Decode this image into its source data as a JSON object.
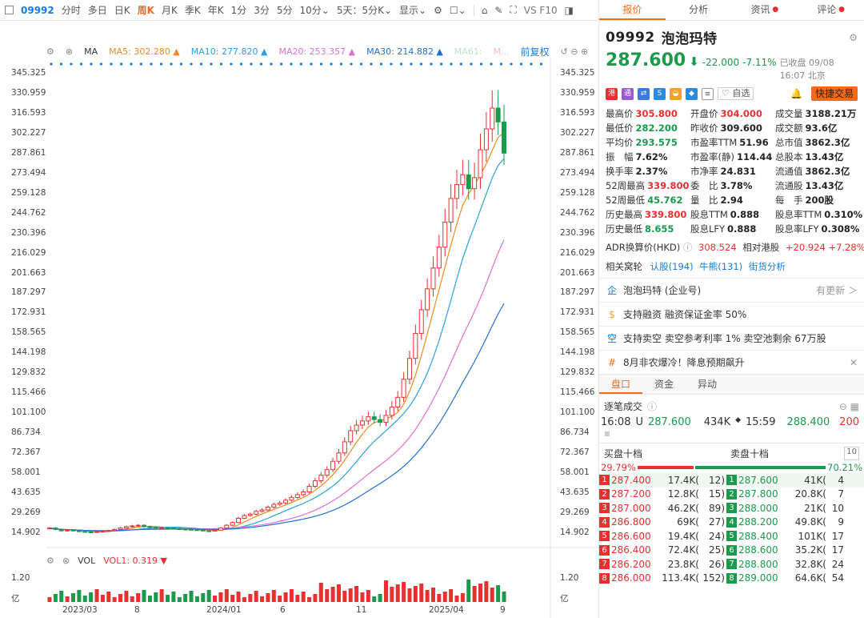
{
  "toolbar": {
    "code": "09992",
    "items": [
      "分时",
      "多日",
      "日K",
      "周K",
      "月K",
      "季K",
      "年K",
      "1分",
      "3分",
      "5分",
      "10分⌄",
      "5天：5分K⌄",
      "显示⌄"
    ],
    "active": "周K",
    "right": "VS F10"
  },
  "ma": {
    "label": "MA",
    "ma5": "MA5:  302.280 ▲",
    "ma10": "MA10:  277.820 ▲",
    "ma20": "MA20:  253.357 ▲",
    "ma30": "MA30:  214.882 ▲",
    "ma61": "MA61:",
    "mam": "M...",
    "fuquan": "前复权"
  },
  "vol": {
    "label": "VOL",
    "vol1": "VOL1:  0.319 ▼",
    "top": "1.20",
    "unit": "亿"
  },
  "yticks": [
    "345.325",
    "330.959",
    "316.593",
    "302.227",
    "287.861",
    "273.494",
    "259.128",
    "244.762",
    "230.396",
    "216.029",
    "201.663",
    "187.297",
    "172.931",
    "158.565",
    "144.198",
    "129.832",
    "115.466",
    "101.100",
    "86.734",
    "72.367",
    "58.001",
    "43.635",
    "29.269",
    "14.902"
  ],
  "xlabels": [
    "2023/03",
    "8",
    "2024/01",
    "6",
    "11",
    "2025/04",
    "9"
  ],
  "chart_data": {
    "type": "candlestick",
    "y_range": [
      14.902,
      345.325
    ],
    "close": [
      18,
      17,
      16,
      16.5,
      16,
      15.5,
      15.2,
      15,
      15.4,
      15.8,
      16.2,
      17,
      18,
      19,
      19.5,
      20,
      19,
      18.5,
      18,
      18.2,
      18,
      17.5,
      17.2,
      17,
      16.8,
      16.5,
      16,
      15.8,
      16.5,
      18,
      20,
      22,
      25,
      27,
      28,
      30,
      31,
      33,
      35,
      36,
      38,
      40,
      42,
      44,
      48,
      52,
      56,
      60,
      66,
      72,
      80,
      88,
      92,
      95,
      98,
      96,
      94,
      99,
      105,
      112,
      125,
      140,
      158,
      175,
      190,
      205,
      220,
      238,
      255,
      265,
      272,
      262,
      270,
      290,
      305,
      320,
      310,
      287.6
    ]
  },
  "panel": {
    "tabs": [
      "报价",
      "分析",
      "资讯",
      "评论"
    ],
    "code": "09992",
    "name": "泡泡玛特",
    "price": "287.600",
    "arrow": "⬇",
    "chg": "-22.000",
    "pct": "-7.11%",
    "ts": "已收盘 09/08 16:07 北京",
    "zixuan": "自选",
    "quick": "快捷交易",
    "stats": [
      [
        "最高价",
        "305.800",
        "r"
      ],
      [
        "开盘价",
        "304.000",
        "r"
      ],
      [
        "成交量",
        "3188.21万",
        ""
      ],
      [
        "最低价",
        "282.200",
        "g"
      ],
      [
        "昨收价",
        "309.600",
        ""
      ],
      [
        "成交额",
        "93.6亿",
        ""
      ],
      [
        "平均价",
        "293.575",
        "g"
      ],
      [
        "市盈率TTM",
        "51.96",
        ""
      ],
      [
        "总市值",
        "3862.3亿",
        ""
      ],
      [
        "振　幅",
        "7.62%",
        ""
      ],
      [
        "市盈率(静)",
        "114.44",
        ""
      ],
      [
        "总股本",
        "13.43亿",
        ""
      ],
      [
        "换手率",
        "2.37%",
        ""
      ],
      [
        "市净率",
        "24.831",
        ""
      ],
      [
        "流通值",
        "3862.3亿",
        ""
      ],
      [
        "52周最高",
        "339.800",
        "r"
      ],
      [
        "委　比",
        "3.78%",
        ""
      ],
      [
        "流通股",
        "13.43亿",
        ""
      ],
      [
        "52周最低",
        "45.762",
        "g"
      ],
      [
        "量　比",
        "2.94",
        ""
      ],
      [
        "每　手",
        "200股",
        ""
      ],
      [
        "历史最高",
        "339.800",
        "r"
      ],
      [
        "股息TTM",
        "0.888",
        ""
      ],
      [
        "股息率TTM",
        "0.310%",
        ""
      ],
      [
        "历史最低",
        "8.655",
        "g"
      ],
      [
        "股息LFY",
        "0.888",
        ""
      ],
      [
        "股息率LFY",
        "0.308%",
        ""
      ]
    ],
    "adr_label": "ADR换算价(HKD)",
    "adr": "308.524",
    "adr_rel": "相对港股",
    "adr_chg": "+20.924",
    "adr_pct": "+7.28%",
    "warrants_label": "相关窝轮",
    "warrants": [
      "认股(194)",
      "牛熊(131)",
      "街货分析"
    ],
    "news": [
      {
        "icon": "企",
        "text": "泡泡玛特 (企业号)",
        "right": "有更新 ＞"
      },
      {
        "icon": "$",
        "text": "支持融资  融资保证金率 50%",
        "right": ""
      },
      {
        "icon": "空",
        "text": "支持卖空  卖空参考利率 1%  卖空池剩余 67万股",
        "right": ""
      },
      {
        "icon": "#",
        "text": "8月非农爆冷！降息预期飙升",
        "right": "✕"
      }
    ],
    "subtabs": [
      "盘口",
      "资金",
      "异动"
    ],
    "tick_label": "逐笔成交",
    "tick": {
      "time": "16:08",
      "flag": "U",
      "price": "287.600",
      "vol": "434K",
      "time2": "15:59",
      "price2": "288.400",
      "vol2": "200"
    },
    "ob_bid": "买盘十档",
    "ob_ask": "卖盘十档",
    "ob_n": "10",
    "bid_pct": "29.79%",
    "ask_pct": "70.21%",
    "book": [
      [
        "1",
        "287.400",
        "17.4K(",
        "12)",
        "1",
        "287.600",
        "41K(",
        "4"
      ],
      [
        "2",
        "287.200",
        "12.8K(",
        "15)",
        "2",
        "287.800",
        "20.8K(",
        "7"
      ],
      [
        "3",
        "287.000",
        "46.2K(",
        "89)",
        "3",
        "288.000",
        "21K(",
        "10"
      ],
      [
        "4",
        "286.800",
        "69K(",
        "27)",
        "4",
        "288.200",
        "49.8K(",
        "9"
      ],
      [
        "5",
        "286.600",
        "19.4K(",
        "24)",
        "5",
        "288.400",
        "101K(",
        "17"
      ],
      [
        "6",
        "286.400",
        "72.4K(",
        "25)",
        "6",
        "288.600",
        "35.2K(",
        "17"
      ],
      [
        "7",
        "286.200",
        "23.8K(",
        "26)",
        "7",
        "288.800",
        "32.8K(",
        "24"
      ],
      [
        "8",
        "286.000",
        "113.4K(",
        "152)",
        "8",
        "289.000",
        "64.6K(",
        "54"
      ]
    ]
  }
}
